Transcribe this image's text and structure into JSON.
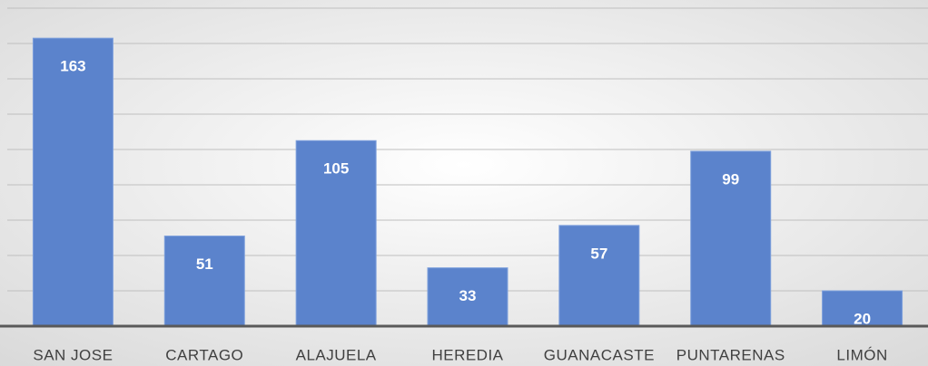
{
  "chart_data": {
    "type": "bar",
    "categories": [
      "SAN JOSE",
      "CARTAGO",
      "ALAJUELA",
      "HEREDIA",
      "GUANACASTE",
      "PUNTARENAS",
      "LIMÓN"
    ],
    "values": [
      163,
      51,
      105,
      33,
      57,
      99,
      20
    ],
    "color": "#5b83cc",
    "ylim": [
      0,
      180
    ],
    "yticks": [
      0,
      20,
      40,
      60,
      80,
      100,
      120,
      140,
      160,
      180
    ],
    "grid": true
  }
}
